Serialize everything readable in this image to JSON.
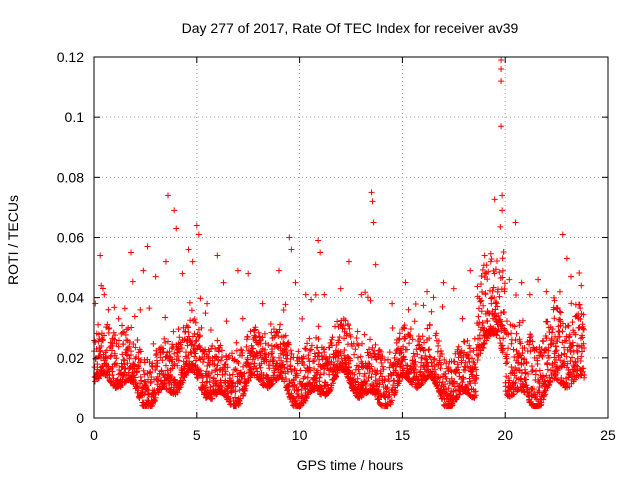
{
  "chart_data": {
    "type": "scatter",
    "title": "Day 277 of 2017, Rate Of TEC Index for receiver av39",
    "xlabel": "GPS time / hours",
    "ylabel": "ROTI / TECUs",
    "xlim": [
      0,
      25
    ],
    "ylim": [
      0,
      0.12
    ],
    "x_ticks": [
      0,
      5,
      10,
      15,
      20,
      25
    ],
    "x_tick_labels": [
      "0",
      "5",
      "10",
      "15",
      "20",
      "25"
    ],
    "y_ticks": [
      0,
      0.02,
      0.04,
      0.06,
      0.08,
      0.1,
      0.12
    ],
    "y_tick_labels": [
      "0",
      "0.02",
      "0.04",
      "0.06",
      "0.08",
      "0.1",
      "0.12"
    ],
    "grid": true,
    "marker": "+",
    "marker_color": "#ff0000",
    "series": [
      {
        "name": "ROTI",
        "note": "dense scatter of ~5-minute ROTI values; representative points",
        "points": [
          [
            0.2,
            0.031
          ],
          [
            0.3,
            0.054
          ],
          [
            0.35,
            0.044
          ],
          [
            0.5,
            0.041
          ],
          [
            0.7,
            0.036
          ],
          [
            1.2,
            0.033
          ],
          [
            1.8,
            0.055
          ],
          [
            2.4,
            0.049
          ],
          [
            2.6,
            0.057
          ],
          [
            3.0,
            0.047
          ],
          [
            3.5,
            0.052
          ],
          [
            3.6,
            0.074
          ],
          [
            3.9,
            0.069
          ],
          [
            4.0,
            0.063
          ],
          [
            4.3,
            0.048
          ],
          [
            4.6,
            0.056
          ],
          [
            4.8,
            0.052
          ],
          [
            5.0,
            0.064
          ],
          [
            5.1,
            0.061
          ],
          [
            5.5,
            0.038
          ],
          [
            6.0,
            0.054
          ],
          [
            6.3,
            0.045
          ],
          [
            7.0,
            0.049
          ],
          [
            7.5,
            0.048
          ],
          [
            8.2,
            0.038
          ],
          [
            9.0,
            0.049
          ],
          [
            9.5,
            0.06
          ],
          [
            9.6,
            0.056
          ],
          [
            9.8,
            0.045
          ],
          [
            10.3,
            0.041
          ],
          [
            10.9,
            0.059
          ],
          [
            11.0,
            0.055
          ],
          [
            11.2,
            0.041
          ],
          [
            12.0,
            0.043
          ],
          [
            12.4,
            0.052
          ],
          [
            13.0,
            0.041
          ],
          [
            13.5,
            0.075
          ],
          [
            13.55,
            0.072
          ],
          [
            13.6,
            0.065
          ],
          [
            13.7,
            0.051
          ],
          [
            14.5,
            0.038
          ],
          [
            15.3,
            0.036
          ],
          [
            16.2,
            0.042
          ],
          [
            17.0,
            0.045
          ],
          [
            17.5,
            0.043
          ],
          [
            18.3,
            0.049
          ],
          [
            19.0,
            0.054
          ],
          [
            19.3,
            0.052
          ],
          [
            19.8,
            0.119
          ],
          [
            19.8,
            0.116
          ],
          [
            19.8,
            0.112
          ],
          [
            19.8,
            0.097
          ],
          [
            19.85,
            0.074
          ],
          [
            19.85,
            0.069
          ],
          [
            20.2,
            0.046
          ],
          [
            20.5,
            0.065
          ],
          [
            20.8,
            0.045
          ],
          [
            21.2,
            0.041
          ],
          [
            21.6,
            0.046
          ],
          [
            22.0,
            0.042
          ],
          [
            22.4,
            0.039
          ],
          [
            22.8,
            0.061
          ],
          [
            23.0,
            0.053
          ],
          [
            23.2,
            0.047
          ],
          [
            23.7,
            0.044
          ]
        ]
      }
    ]
  }
}
